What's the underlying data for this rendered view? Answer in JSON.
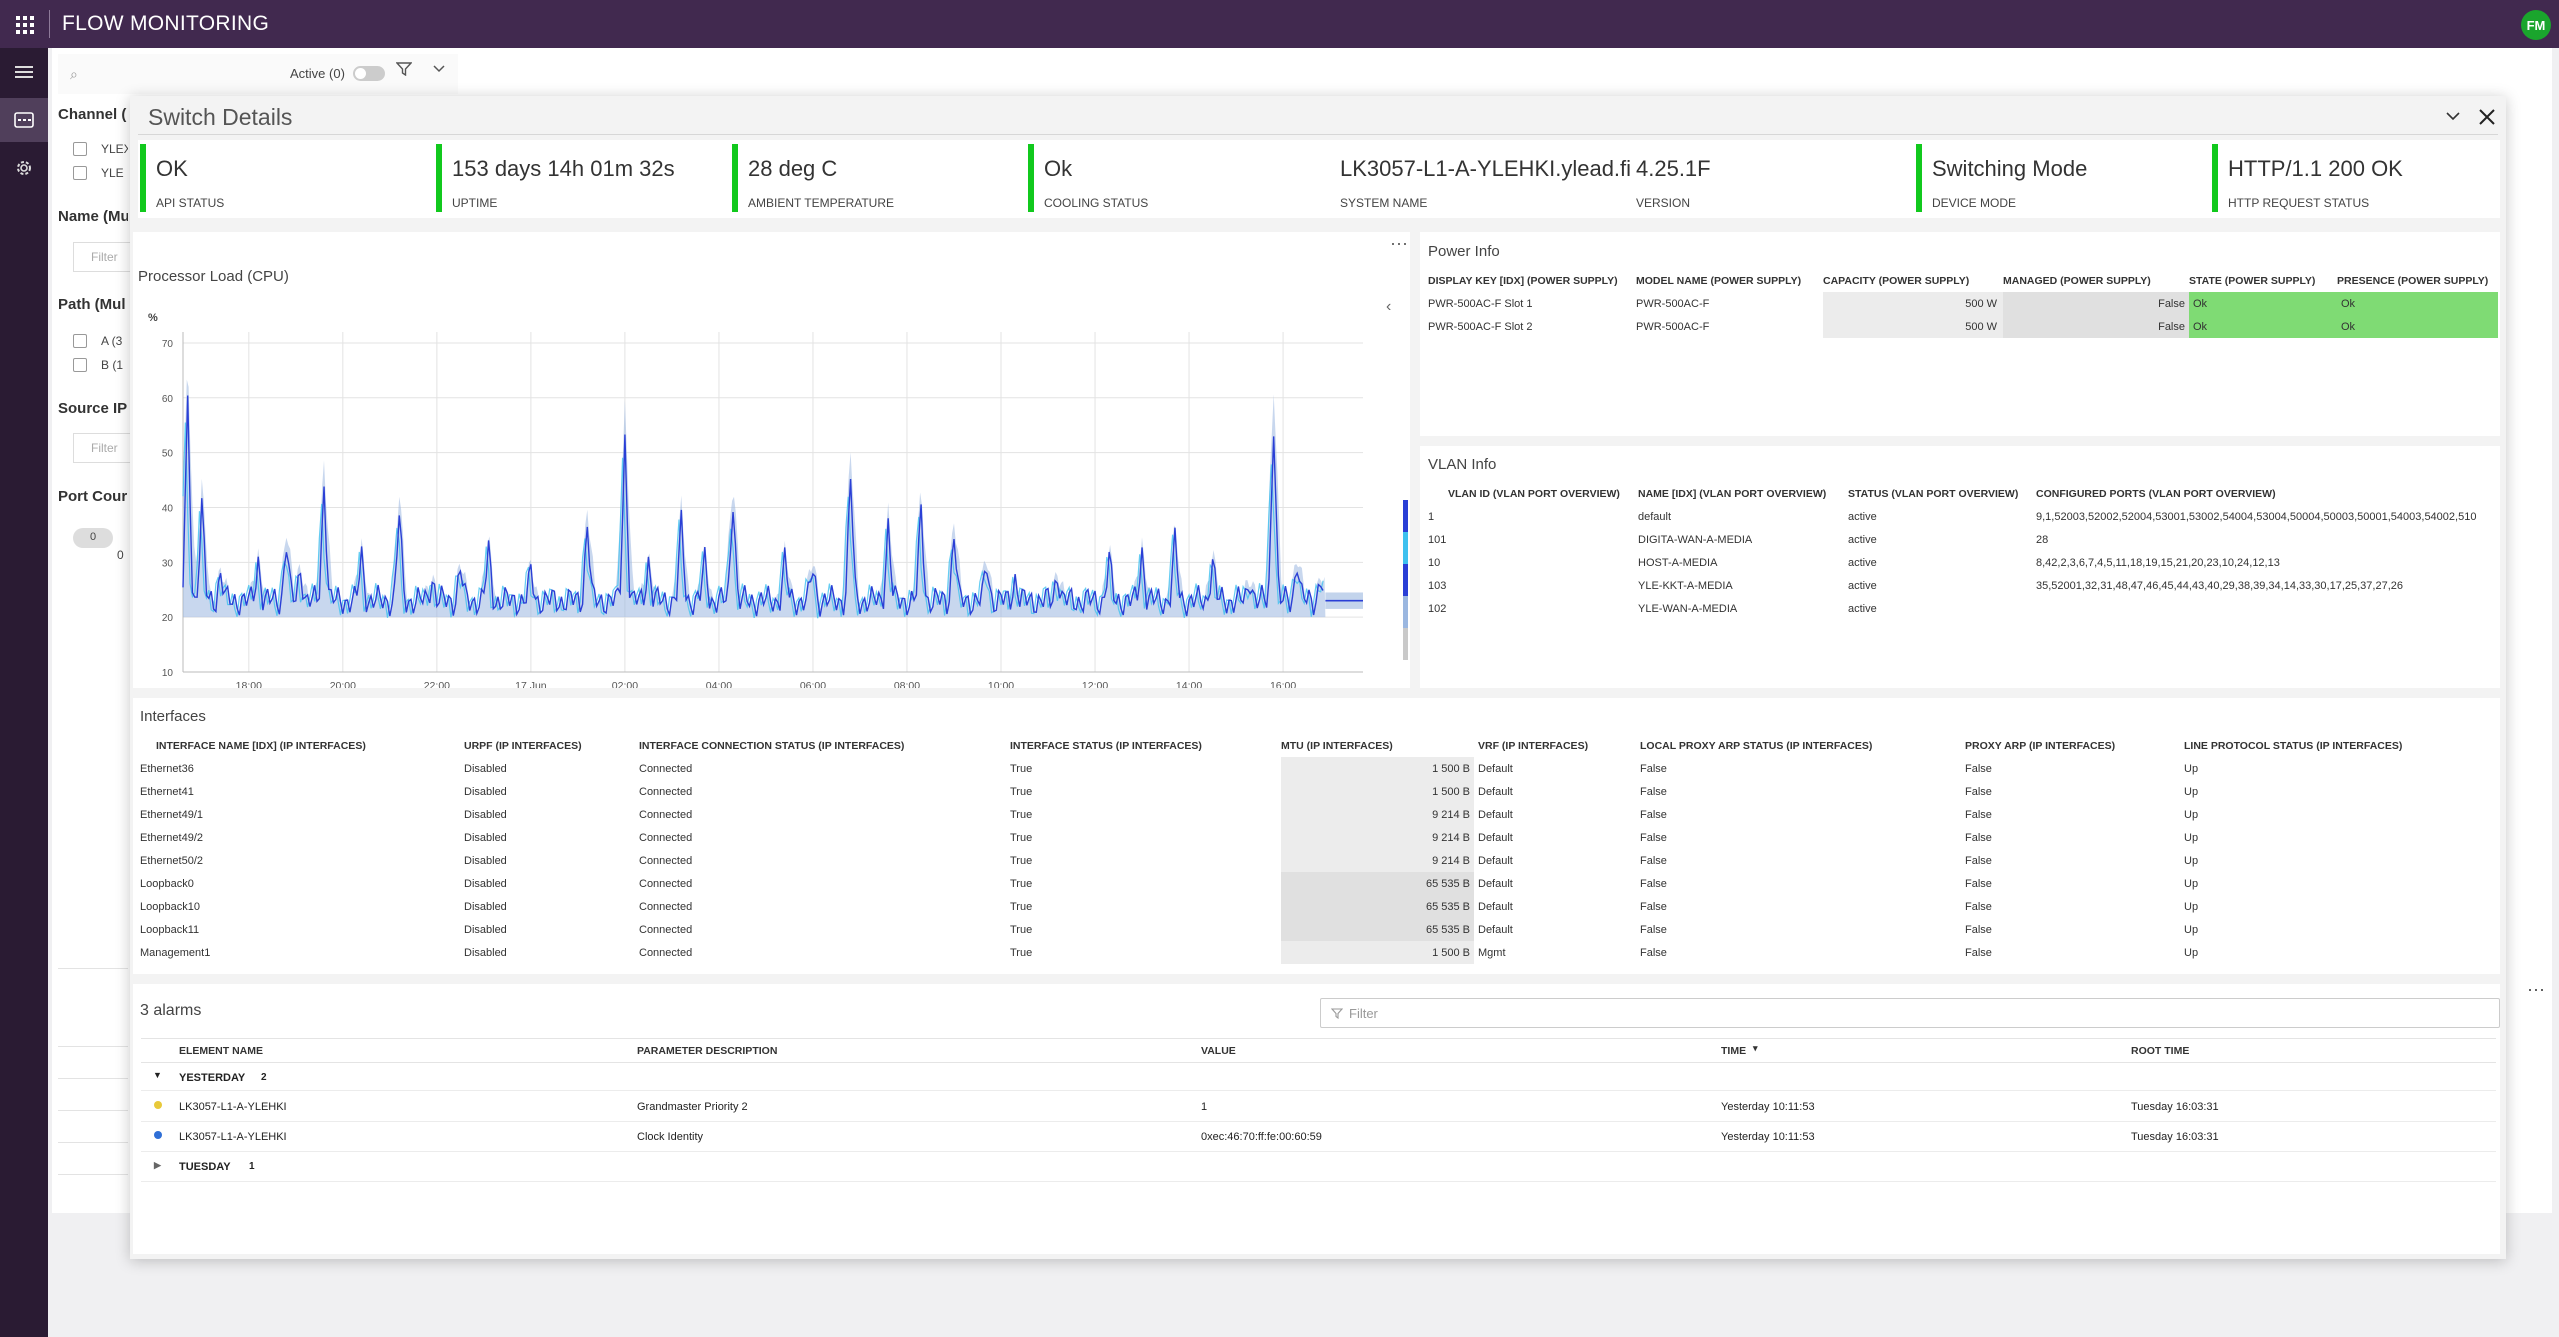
{
  "app": {
    "title": "FLOW MONITORING",
    "avatar": "FM",
    "brand_color": "#41294f"
  },
  "nav": [
    {
      "icon": "menu-icon"
    },
    {
      "icon": "flow-icon",
      "active": true
    },
    {
      "icon": "gear-icon"
    }
  ],
  "background": {
    "active_label": "Active (0)",
    "sections": {
      "channel": "Channel (",
      "name": "Name (Mu",
      "path": "Path (Mul",
      "source_ip": "Source IP",
      "port": "Port Cour"
    },
    "channel_options": [
      "YLEX",
      "YLE"
    ],
    "path_options": [
      "A (3",
      "B (1"
    ],
    "filter_placeholder": "Filter",
    "port_pill": "0",
    "port_value": "0"
  },
  "panel": {
    "title": "Switch Details"
  },
  "kpis": [
    {
      "value": "OK",
      "label": "API STATUS",
      "bar": true
    },
    {
      "value": "153 days 14h 01m 32s",
      "label": "UPTIME",
      "bar": true
    },
    {
      "value": "28 deg C",
      "label": "AMBIENT TEMPERATURE",
      "bar": true
    },
    {
      "value": "Ok",
      "label": "COOLING STATUS",
      "bar": true
    },
    {
      "value": "LK3057-L1-A-YLEHKI.ylead.fi",
      "label": "SYSTEM NAME",
      "bar": false
    },
    {
      "value": "4.25.1F",
      "label": "VERSION",
      "bar": false
    },
    {
      "value": "Switching Mode",
      "label": "DEVICE MODE",
      "bar": true
    },
    {
      "value": "HTTP/1.1 200 OK",
      "label": "HTTP REQUEST STATUS",
      "bar": true
    }
  ],
  "cpu": {
    "title": "Processor Load (CPU)",
    "unit": "%",
    "chart_data": {
      "type": "line",
      "title": "Processor Load (CPU)",
      "ylabel": "%",
      "ylim": [
        10,
        72
      ],
      "yticks": [
        10,
        20,
        30,
        40,
        50,
        60,
        70
      ],
      "xticks": [
        "18:00",
        "20:00",
        "22:00",
        "17 Jun",
        "02:00",
        "04:00",
        "06:00",
        "08:00",
        "10:00",
        "12:00",
        "14:00",
        "16:00"
      ],
      "x_hours": [
        0,
        2,
        4,
        6,
        8,
        10,
        12,
        14,
        16,
        18,
        20,
        22
      ],
      "x_range_hours": [
        -1.4,
        23.7
      ],
      "baseline": 23,
      "peaks": [
        {
          "t": -1.3,
          "v": 66
        },
        {
          "t": -1.0,
          "v": 44
        },
        {
          "t": -0.6,
          "v": 29
        },
        {
          "t": 0.2,
          "v": 32
        },
        {
          "t": 0.8,
          "v": 36
        },
        {
          "t": 1.1,
          "v": 30
        },
        {
          "t": 1.6,
          "v": 49
        },
        {
          "t": 2.4,
          "v": 33
        },
        {
          "t": 3.2,
          "v": 42
        },
        {
          "t": 3.9,
          "v": 28
        },
        {
          "t": 4.5,
          "v": 30
        },
        {
          "t": 5.1,
          "v": 34
        },
        {
          "t": 6.0,
          "v": 29
        },
        {
          "t": 7.2,
          "v": 40
        },
        {
          "t": 8.0,
          "v": 59
        },
        {
          "t": 8.5,
          "v": 32
        },
        {
          "t": 9.2,
          "v": 40
        },
        {
          "t": 9.7,
          "v": 32
        },
        {
          "t": 10.3,
          "v": 46
        },
        {
          "t": 11.4,
          "v": 32
        },
        {
          "t": 12.0,
          "v": 30
        },
        {
          "t": 12.8,
          "v": 50
        },
        {
          "t": 13.6,
          "v": 40
        },
        {
          "t": 14.3,
          "v": 43
        },
        {
          "t": 15.0,
          "v": 38
        },
        {
          "t": 15.7,
          "v": 31
        },
        {
          "t": 16.3,
          "v": 28
        },
        {
          "t": 17.2,
          "v": 29
        },
        {
          "t": 18.3,
          "v": 32
        },
        {
          "t": 19.0,
          "v": 34
        },
        {
          "t": 19.7,
          "v": 36
        },
        {
          "t": 20.5,
          "v": 32
        },
        {
          "t": 21.3,
          "v": 28
        },
        {
          "t": 21.8,
          "v": 63
        },
        {
          "t": 22.3,
          "v": 32
        },
        {
          "t": 22.8,
          "v": 28
        }
      ],
      "flat_region": {
        "from": 22.9,
        "to": 23.7,
        "value": 23
      },
      "colors": [
        "#2a3fd6",
        "#9bb7e0",
        "#3ec1ef"
      ]
    }
  },
  "power": {
    "title": "Power Info",
    "columns": [
      "DISPLAY KEY [IDX] (POWER SUPPLY)",
      "MODEL NAME (POWER SUPPLY)",
      "CAPACITY (POWER SUPPLY)",
      "MANAGED (POWER SUPPLY)",
      "STATE (POWER SUPPLY)",
      "PRESENCE (POWER SUPPLY)"
    ],
    "rows": [
      [
        "PWR-500AC-F Slot 1",
        "PWR-500AC-F",
        "500 W",
        "False",
        "Ok",
        "Ok"
      ],
      [
        "PWR-500AC-F Slot 2",
        "PWR-500AC-F",
        "500 W",
        "False",
        "Ok",
        "Ok"
      ]
    ]
  },
  "vlan": {
    "title": "VLAN Info",
    "columns": [
      "VLAN ID (VLAN PORT OVERVIEW)",
      "NAME [IDX] (VLAN PORT OVERVIEW)",
      "STATUS (VLAN PORT OVERVIEW)",
      "CONFIGURED PORTS (VLAN PORT OVERVIEW)"
    ],
    "rows": [
      [
        "1",
        "default",
        "active",
        "9,1,52003,52002,52004,53001,53002,54004,53004,50004,50003,50001,54003,54002,510"
      ],
      [
        "101",
        "DIGITA-WAN-A-MEDIA",
        "active",
        "28"
      ],
      [
        "10",
        "HOST-A-MEDIA",
        "active",
        "8,42,2,3,6,7,4,5,11,18,19,15,21,20,23,10,24,12,13"
      ],
      [
        "103",
        "YLE-KKT-A-MEDIA",
        "active",
        "35,52001,32,31,48,47,46,45,44,43,40,29,38,39,34,14,33,30,17,25,37,27,26"
      ],
      [
        "102",
        "YLE-WAN-A-MEDIA",
        "active",
        ""
      ]
    ]
  },
  "interfaces": {
    "title": "Interfaces",
    "columns": [
      "INTERFACE NAME [IDX] (IP INTERFACES)",
      "URPF (IP INTERFACES)",
      "INTERFACE CONNECTION STATUS (IP INTERFACES)",
      "INTERFACE STATUS (IP INTERFACES)",
      "MTU (IP INTERFACES)",
      "VRF (IP INTERFACES)",
      "LOCAL PROXY ARP STATUS (IP INTERFACES)",
      "PROXY ARP (IP INTERFACES)",
      "LINE PROTOCOL STATUS (IP INTERFACES)"
    ],
    "rows": [
      [
        "Ethernet36",
        "Disabled",
        "Connected",
        "True",
        "1 500 B",
        "Default",
        "False",
        "False",
        "Up"
      ],
      [
        "Ethernet41",
        "Disabled",
        "Connected",
        "True",
        "1 500 B",
        "Default",
        "False",
        "False",
        "Up"
      ],
      [
        "Ethernet49/1",
        "Disabled",
        "Connected",
        "True",
        "9 214 B",
        "Default",
        "False",
        "False",
        "Up"
      ],
      [
        "Ethernet49/2",
        "Disabled",
        "Connected",
        "True",
        "9 214 B",
        "Default",
        "False",
        "False",
        "Up"
      ],
      [
        "Ethernet50/2",
        "Disabled",
        "Connected",
        "True",
        "9 214 B",
        "Default",
        "False",
        "False",
        "Up"
      ],
      [
        "Loopback0",
        "Disabled",
        "Connected",
        "True",
        "65 535 B",
        "Default",
        "False",
        "False",
        "Up"
      ],
      [
        "Loopback10",
        "Disabled",
        "Connected",
        "True",
        "65 535 B",
        "Default",
        "False",
        "False",
        "Up"
      ],
      [
        "Loopback11",
        "Disabled",
        "Connected",
        "True",
        "65 535 B",
        "Default",
        "False",
        "False",
        "Up"
      ],
      [
        "Management1",
        "Disabled",
        "Connected",
        "True",
        "1 500 B",
        "Mgmt",
        "False",
        "False",
        "Up"
      ]
    ],
    "mtu_shade": [
      "light",
      "light",
      "light",
      "light",
      "light",
      "dark",
      "dark",
      "dark",
      "light"
    ]
  },
  "alarms": {
    "title": "3 alarms",
    "filter_placeholder": "Filter",
    "columns": [
      "ELEMENT NAME",
      "PARAMETER DESCRIPTION",
      "VALUE",
      "TIME",
      "ROOT TIME"
    ],
    "groups": [
      {
        "label": "YESTERDAY",
        "count": "2",
        "expanded": true,
        "rows": [
          {
            "severity_color": "#e8c93a",
            "element": "LK3057-L1-A-YLEHKI",
            "parameter": "Grandmaster Priority 2",
            "value": "1",
            "time": "Yesterday 10:11:53",
            "root": "Tuesday 16:03:31"
          },
          {
            "severity_color": "#2f6fd6",
            "element": "LK3057-L1-A-YLEHKI",
            "parameter": "Clock Identity",
            "value": "0xec:46:70:ff:fe:00:60:59",
            "time": "Yesterday 10:11:53",
            "root": "Tuesday 16:03:31"
          }
        ]
      },
      {
        "label": "TUESDAY",
        "count": "1",
        "expanded": false,
        "rows": []
      }
    ]
  }
}
